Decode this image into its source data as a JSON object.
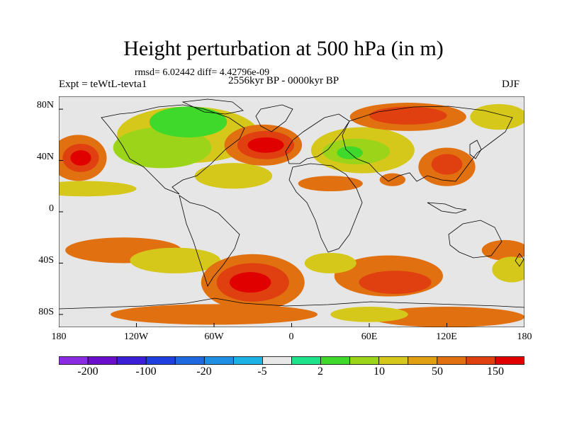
{
  "title": "Height perturbation at 500 hPa (in m)",
  "stats_text": "rmsd= 6.02442  diff= 4.42796e-09",
  "experiment_label": "Expt = teWtL-tevta1",
  "period_label": "2556kyr BP - 0000kyr BP",
  "season_label": "DJF",
  "map": {
    "projection": "cylindrical-equidistant",
    "lon_range": [
      -180,
      180
    ],
    "lat_range": [
      -90,
      90
    ],
    "lat_ticks": [
      {
        "value": 80,
        "label": "80N"
      },
      {
        "value": 40,
        "label": "40N"
      },
      {
        "value": 0,
        "label": "0"
      },
      {
        "value": -40,
        "label": "40S"
      },
      {
        "value": -80,
        "label": "80S"
      }
    ],
    "lon_ticks": [
      {
        "value": -180,
        "label": "180"
      },
      {
        "value": -120,
        "label": "120W"
      },
      {
        "value": -60,
        "label": "60W"
      },
      {
        "value": 0,
        "label": "0"
      },
      {
        "value": 60,
        "label": "60E"
      },
      {
        "value": 120,
        "label": "120E"
      },
      {
        "value": 180,
        "label": "180"
      }
    ],
    "background_color": "#e6e6e6",
    "field_blobs": [
      {
        "lon": -165,
        "lat": 42,
        "rlon": 22,
        "rlat": 18,
        "level": 5
      },
      {
        "lon": -163,
        "lat": 42,
        "rlon": 14,
        "rlat": 11,
        "level": 6
      },
      {
        "lon": -163,
        "lat": 42,
        "rlon": 8,
        "rlat": 6,
        "level": 7
      },
      {
        "lon": -160,
        "lat": 18,
        "rlon": 40,
        "rlat": 6,
        "level": 3
      },
      {
        "lon": -80,
        "lat": 60,
        "rlon": 55,
        "rlat": 22,
        "level": 3
      },
      {
        "lon": -100,
        "lat": 50,
        "rlon": 38,
        "rlat": 16,
        "level": 2
      },
      {
        "lon": -80,
        "lat": 70,
        "rlon": 30,
        "rlat": 12,
        "level": 1
      },
      {
        "lon": -45,
        "lat": 28,
        "rlon": 30,
        "rlat": 10,
        "level": 3
      },
      {
        "lon": -22,
        "lat": 52,
        "rlon": 30,
        "rlat": 16,
        "level": 5
      },
      {
        "lon": -20,
        "lat": 52,
        "rlon": 22,
        "rlat": 11,
        "level": 6
      },
      {
        "lon": -20,
        "lat": 52,
        "rlon": 14,
        "rlat": 6,
        "level": 7
      },
      {
        "lon": 55,
        "lat": 48,
        "rlon": 40,
        "rlat": 18,
        "level": 3
      },
      {
        "lon": 50,
        "lat": 47,
        "rlon": 26,
        "rlat": 10,
        "level": 2
      },
      {
        "lon": 45,
        "lat": 46,
        "rlon": 10,
        "rlat": 5,
        "level": 1
      },
      {
        "lon": 90,
        "lat": 74,
        "rlon": 45,
        "rlat": 11,
        "level": 5
      },
      {
        "lon": 90,
        "lat": 75,
        "rlon": 30,
        "rlat": 7,
        "level": 6
      },
      {
        "lon": 160,
        "lat": 74,
        "rlon": 22,
        "rlat": 10,
        "level": 3
      },
      {
        "lon": 120,
        "lat": 35,
        "rlon": 22,
        "rlat": 15,
        "level": 5
      },
      {
        "lon": 120,
        "lat": 37,
        "rlon": 12,
        "rlat": 8,
        "level": 6
      },
      {
        "lon": 30,
        "lat": 22,
        "rlon": 25,
        "rlat": 6,
        "level": 5
      },
      {
        "lon": 78,
        "lat": 25,
        "rlon": 10,
        "rlat": 5,
        "level": 5
      },
      {
        "lon": -130,
        "lat": -30,
        "rlon": 45,
        "rlat": 10,
        "level": 5
      },
      {
        "lon": -90,
        "lat": -38,
        "rlon": 35,
        "rlat": 10,
        "level": 3
      },
      {
        "lon": -30,
        "lat": -55,
        "rlon": 40,
        "rlat": 22,
        "level": 5
      },
      {
        "lon": -30,
        "lat": -55,
        "rlon": 28,
        "rlat": 15,
        "level": 6
      },
      {
        "lon": -32,
        "lat": -55,
        "rlon": 16,
        "rlat": 8,
        "level": 7
      },
      {
        "lon": 75,
        "lat": -50,
        "rlon": 42,
        "rlat": 16,
        "level": 5
      },
      {
        "lon": 80,
        "lat": -55,
        "rlon": 28,
        "rlat": 9,
        "level": 6
      },
      {
        "lon": 30,
        "lat": -40,
        "rlon": 20,
        "rlat": 8,
        "level": 3
      },
      {
        "lon": 165,
        "lat": -30,
        "rlon": 18,
        "rlat": 8,
        "level": 5
      },
      {
        "lon": 170,
        "lat": -45,
        "rlon": 15,
        "rlat": 10,
        "level": 3
      },
      {
        "lon": -60,
        "lat": -80,
        "rlon": 80,
        "rlat": 8,
        "level": 5
      },
      {
        "lon": 120,
        "lat": -82,
        "rlon": 60,
        "rlat": 8,
        "level": 5
      },
      {
        "lon": 60,
        "lat": -80,
        "rlon": 30,
        "rlat": 6,
        "level": 3
      }
    ]
  },
  "colorbar": {
    "colors": [
      "#8a2be2",
      "#6a0dcd",
      "#3a1fd6",
      "#1f3fe0",
      "#1f69e0",
      "#1f8fe6",
      "#1cb2e6",
      "#e8e8e8",
      "#1ee38a",
      "#3ed92a",
      "#9cd41a",
      "#d6c81a",
      "#e0a012",
      "#e07010",
      "#e04010",
      "#e00000"
    ],
    "labels": [
      {
        "boundary": 1,
        "text": "-200"
      },
      {
        "boundary": 3,
        "text": "-100"
      },
      {
        "boundary": 5,
        "text": "-20"
      },
      {
        "boundary": 7,
        "text": "-5"
      },
      {
        "boundary": 9,
        "text": "2"
      },
      {
        "boundary": 11,
        "text": "10"
      },
      {
        "boundary": 13,
        "text": "50"
      },
      {
        "boundary": 15,
        "text": "150"
      }
    ]
  }
}
